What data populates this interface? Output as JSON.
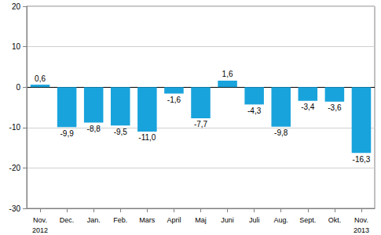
{
  "chart_data": {
    "type": "bar",
    "categories": [
      "Nov.\n2012",
      "Dec.",
      "Jan.",
      "Feb.",
      "Mars",
      "April",
      "Maj",
      "Juni",
      "Juli",
      "Aug.",
      "Sept.",
      "Okt.",
      "Nov.\n2013"
    ],
    "values": [
      0.6,
      -9.9,
      -8.8,
      -9.5,
      -11.0,
      -1.6,
      -7.7,
      1.6,
      -4.3,
      -9.8,
      -3.4,
      -3.6,
      -16.3
    ],
    "value_labels": [
      "0,6",
      "-9,9",
      "-8,8",
      "-9,5",
      "-11,0",
      "-1,6",
      "-7,7",
      "1,6",
      "-4,3",
      "-9,8",
      "-3,4",
      "-3,6",
      "-16,3"
    ],
    "color": "#19a3dc",
    "ylim": [
      -30,
      20
    ],
    "yticks": [
      -30,
      -20,
      -10,
      0,
      10,
      20
    ],
    "grid": true,
    "data_labels": true
  }
}
